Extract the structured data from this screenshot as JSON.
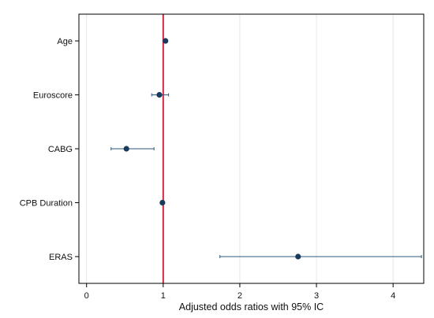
{
  "chart_data": {
    "type": "forest",
    "xlabel": "Adjusted odds ratios with 95% IC",
    "ylabel": "",
    "xlim": [
      -0.1,
      4.4
    ],
    "xticks": [
      0,
      1,
      2,
      3,
      4
    ],
    "xtick_labels": [
      "0",
      "1",
      "2",
      "3",
      "4"
    ],
    "reference_line": 1,
    "grid": "vertical",
    "colors": {
      "point": "#1a3b5c",
      "ci_line": "#2e5a7d",
      "reference_line": "#cc2944",
      "grid": "#e6e6e6",
      "frame": "#000000"
    },
    "rows": [
      {
        "label": "Age",
        "estimate": 1.03,
        "ci_low": 1.02,
        "ci_high": 1.04
      },
      {
        "label": "Euroscore",
        "estimate": 0.95,
        "ci_low": 0.85,
        "ci_high": 1.07
      },
      {
        "label": "CABG",
        "estimate": 0.52,
        "ci_low": 0.32,
        "ci_high": 0.88
      },
      {
        "label": "CPB Duration",
        "estimate": 0.99,
        "ci_low": 0.98,
        "ci_high": 1.0
      },
      {
        "label": "ERAS",
        "estimate": 2.76,
        "ci_low": 1.74,
        "ci_high": 4.37
      }
    ]
  }
}
